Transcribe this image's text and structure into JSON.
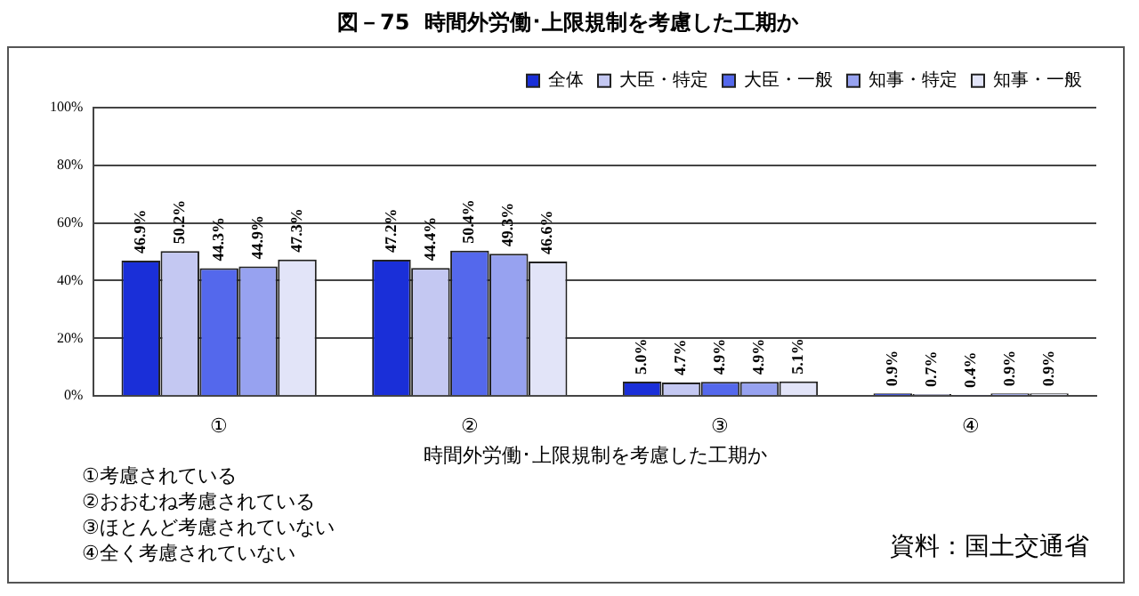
{
  "chart_data": {
    "type": "bar",
    "title": "図－75  時間外労働･上限規制を考慮した工期か",
    "xlabel": "時間外労働･上限規制を考慮した工期か",
    "categories": [
      "①",
      "②",
      "③",
      "④"
    ],
    "series": [
      {
        "name": "全体",
        "color": "#1a2fd8",
        "values": [
          46.9,
          47.2,
          5.0,
          0.9
        ],
        "value_labels": [
          "46.9%",
          "47.2%",
          "5.0%",
          "0.9%"
        ]
      },
      {
        "name": "大臣・特定",
        "color": "#c4c8f2",
        "values": [
          50.2,
          44.4,
          4.7,
          0.7
        ],
        "value_labels": [
          "50.2%",
          "44.4%",
          "4.7%",
          "0.7%"
        ]
      },
      {
        "name": "大臣・一般",
        "color": "#5468ec",
        "values": [
          44.3,
          50.4,
          4.9,
          0.4
        ],
        "value_labels": [
          "44.3%",
          "50.4%",
          "4.9%",
          "0.4%"
        ]
      },
      {
        "name": "知事・特定",
        "color": "#97a2f0",
        "values": [
          44.9,
          49.3,
          4.9,
          0.9
        ],
        "value_labels": [
          "44.9%",
          "49.3%",
          "4.9%",
          "0.9%"
        ]
      },
      {
        "name": "知事・一般",
        "color": "#e2e4f8",
        "values": [
          47.3,
          46.6,
          5.1,
          0.9
        ],
        "value_labels": [
          "47.3%",
          "46.6%",
          "5.1%",
          "0.9%"
        ]
      }
    ],
    "ylim": [
      0,
      100
    ],
    "yticks": [
      {
        "value": 0,
        "label": "0%"
      },
      {
        "value": 20,
        "label": "20%"
      },
      {
        "value": 40,
        "label": "40%"
      },
      {
        "value": 60,
        "label": "60%"
      },
      {
        "value": 80,
        "label": "80%"
      },
      {
        "value": 100,
        "label": "100%"
      }
    ],
    "grid": "y",
    "legend": "top right",
    "annotations": [
      "①考慮されている",
      "②おおむね考慮されている",
      "③ほとんど考慮されていない",
      "④全く考慮されていない",
      "資料：国土交通省"
    ]
  }
}
